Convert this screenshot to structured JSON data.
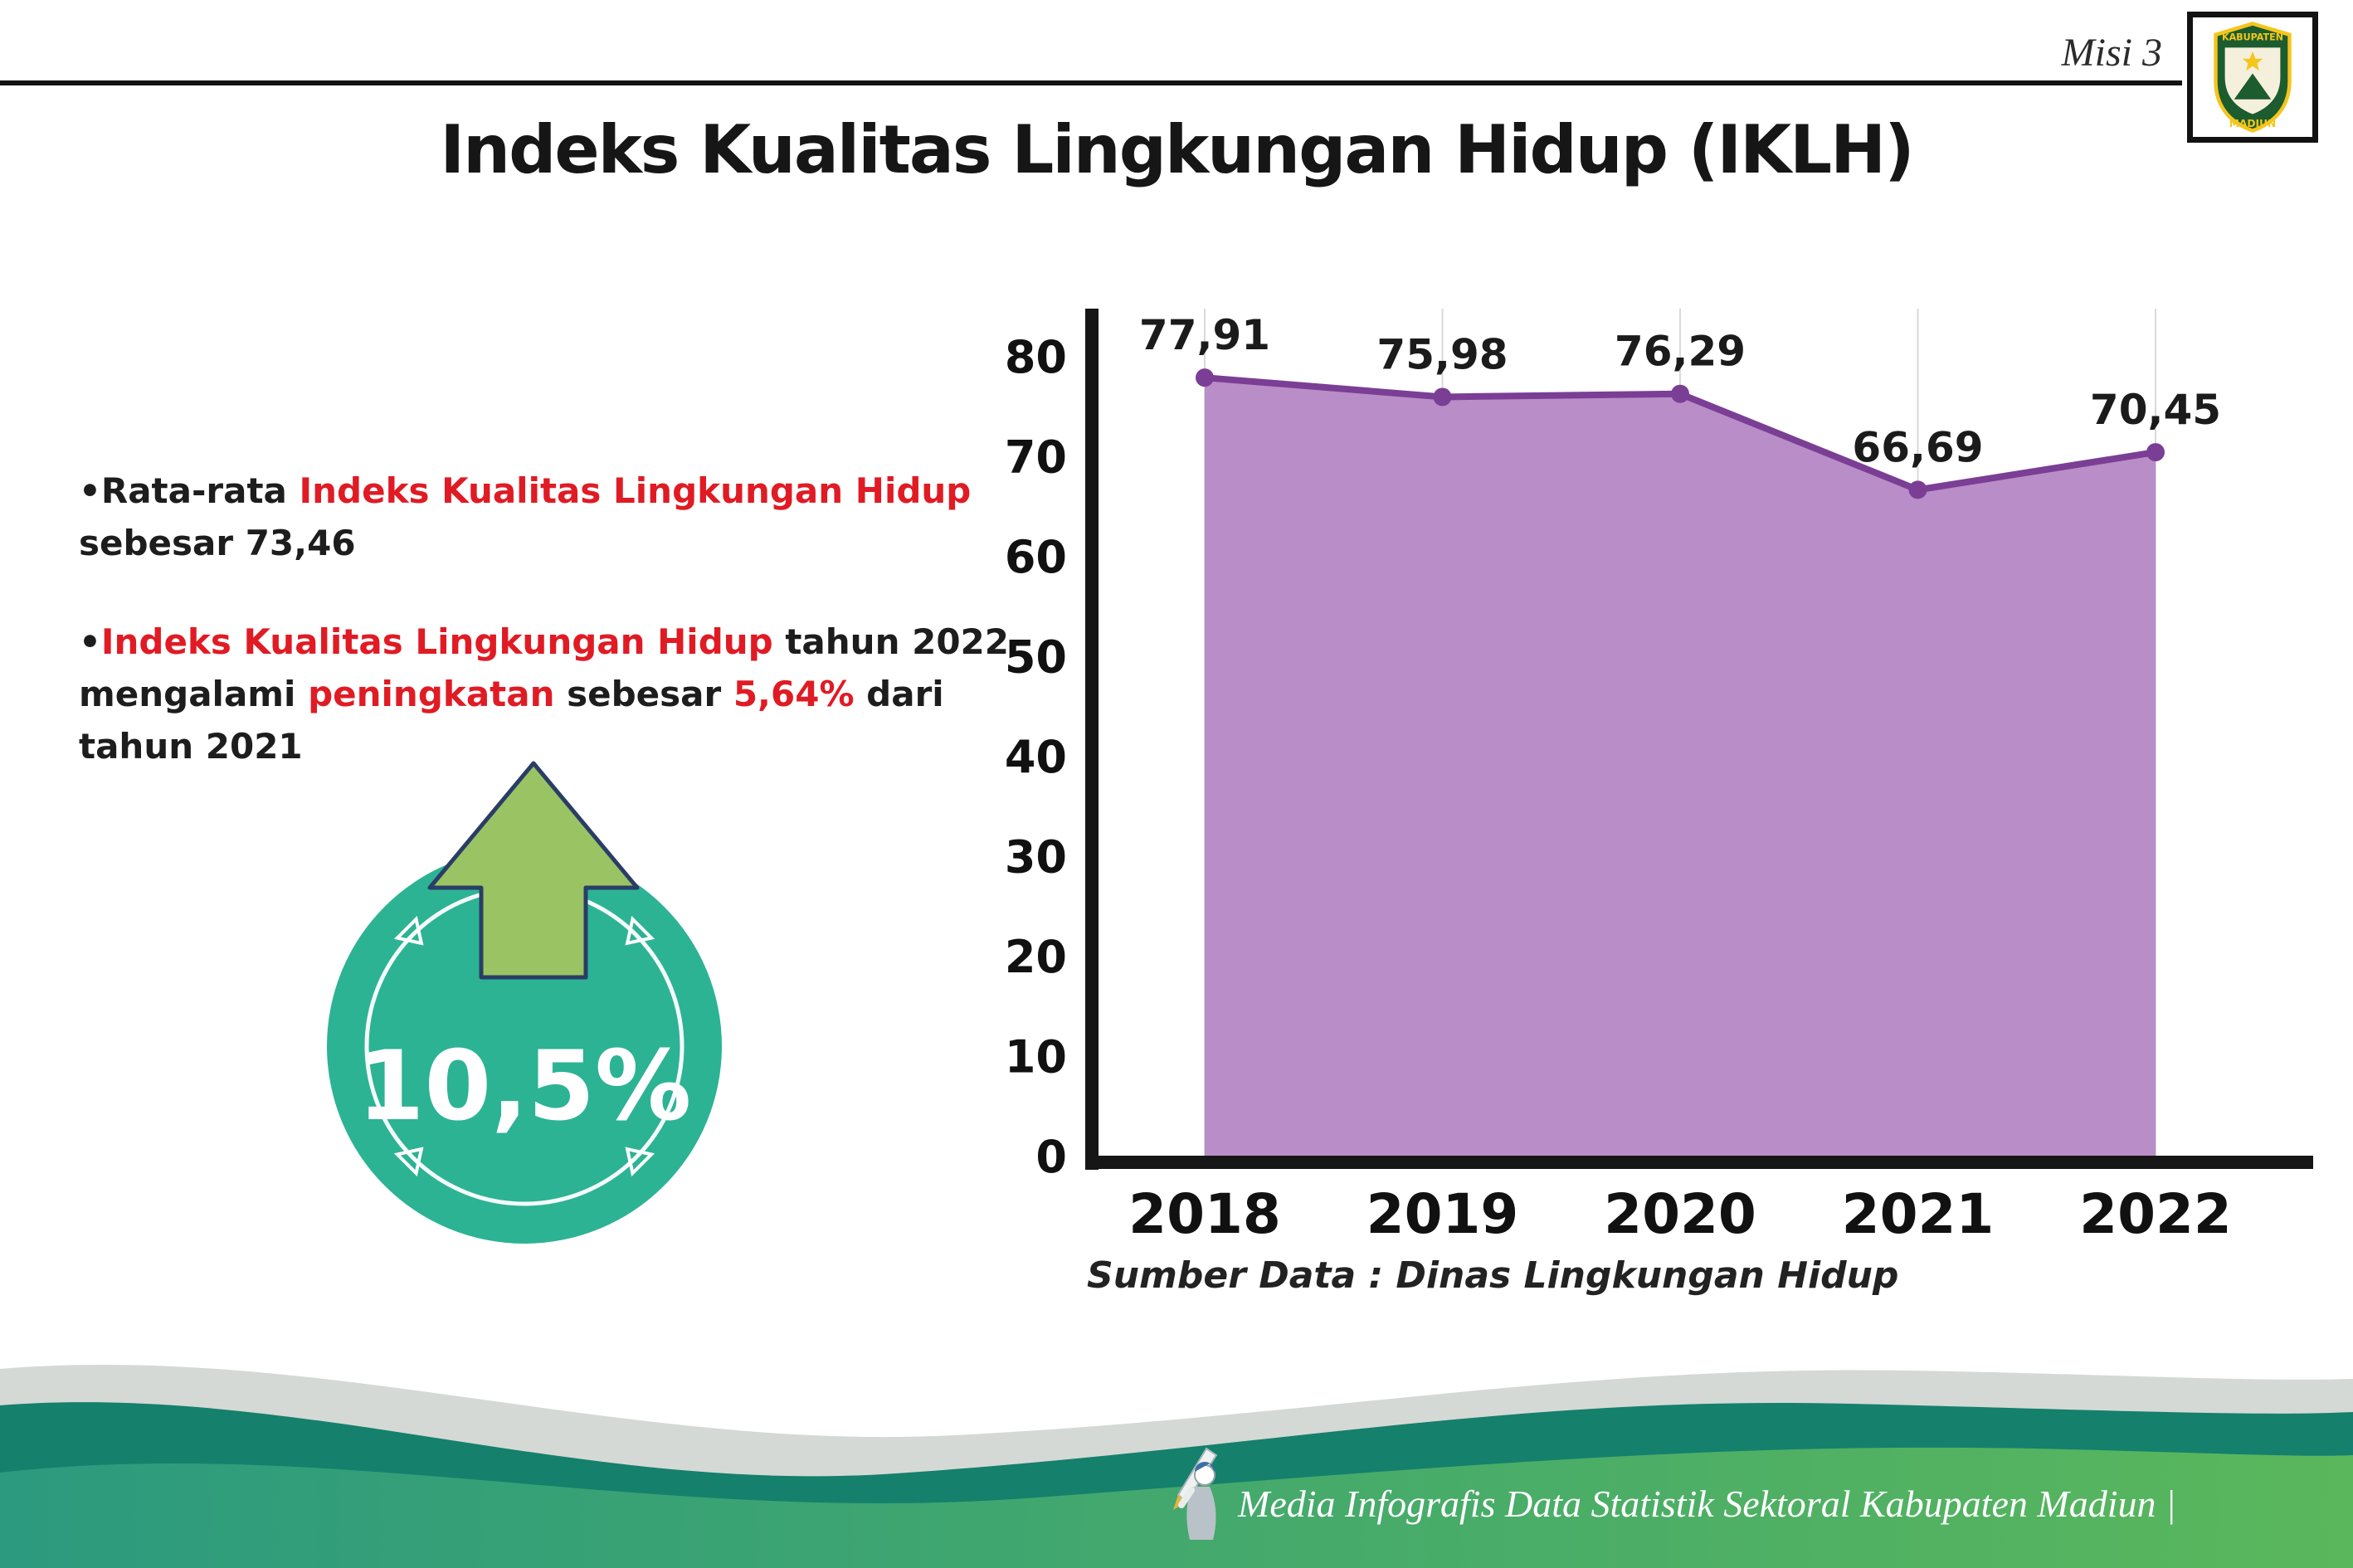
{
  "colors": {
    "accent-red": "#e01b24",
    "text-dark": "#1c1c1c",
    "chart-fill": "#b98dc7",
    "chart-line": "#7b3e95",
    "grid": "#d9d9d9",
    "badge-teal": "#2cb394",
    "arrow-green": "#9ac464",
    "arrow-outline": "#2a3d66",
    "footer-gray": "#d4d9d6",
    "footer-dark-teal": "#15806c",
    "footer-green-start": "#2c9a7e",
    "footer-green-end": "#5ab75c",
    "logo-green": "#1c5c2e",
    "logo-yellow": "#f6c51c"
  },
  "header": {
    "misi_label": "Misi 3",
    "title": "Indeks Kualitas Lingkungan Hidup (IKLH)",
    "logo": {
      "text_top": "KABUPATEN",
      "text_bottom": "MADIUN"
    }
  },
  "bullets": {
    "marker": "•",
    "items": [
      {
        "segments": [
          {
            "text": "Rata-rata ",
            "highlight": false
          },
          {
            "text": "Indeks Kualitas Lingkungan Hidup",
            "highlight": true
          },
          {
            "text": " sebesar 73,46",
            "highlight": false
          }
        ]
      },
      {
        "segments": [
          {
            "text": "Indeks Kualitas Lingkungan Hidup",
            "highlight": true
          },
          {
            "text": " tahun 2022 mengalami ",
            "highlight": false
          },
          {
            "text": "peningkatan",
            "highlight": true
          },
          {
            "text": " sebesar ",
            "highlight": false
          },
          {
            "text": "5,64%",
            "highlight": true
          },
          {
            "text": " dari tahun 2021",
            "highlight": false
          }
        ]
      }
    ]
  },
  "badge": {
    "value": "10,5%"
  },
  "chart_data": {
    "type": "area",
    "title": "Indeks Kualitas Lingkungan Hidup (IKLH)",
    "categories": [
      "2018",
      "2019",
      "2020",
      "2021",
      "2022"
    ],
    "values": [
      77.91,
      75.98,
      76.29,
      66.69,
      70.45
    ],
    "value_labels": [
      "77,91",
      "75,98",
      "76,29",
      "66,69",
      "70,45"
    ],
    "ylim": [
      0,
      80
    ],
    "yticks": [
      0,
      10,
      20,
      30,
      40,
      50,
      60,
      70,
      80
    ],
    "grid": "vertical",
    "legend": "none",
    "source": "Sumber Data : Dinas Lingkungan Hidup"
  },
  "footer": {
    "credit": "Media Infografis Data Statistik Sektoral Kabupaten Madiun |"
  }
}
